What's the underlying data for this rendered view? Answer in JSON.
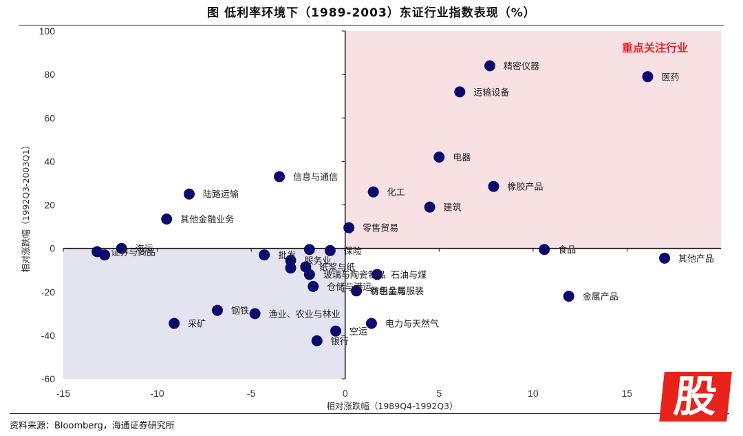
{
  "title": "图    低利率环境下（1989-2003）东证行业指数表现（%）",
  "source": "资料来源：Bloomberg，海通证券研究所",
  "watermark": "股",
  "chart_data": {
    "type": "scatter",
    "xlabel": "相对涨跌幅（1989Q4-1992Q3）",
    "ylabel": "相对涨跌幅（1992Q3-2003Q1）",
    "xlim": [
      -15,
      20
    ],
    "ylim": [
      -60,
      100
    ],
    "x_ticks": [
      -15,
      -10,
      -5,
      0,
      5,
      10,
      15
    ],
    "y_ticks": [
      -60,
      -40,
      -20,
      0,
      20,
      40,
      60,
      80,
      100
    ],
    "focus_label": "重点关注行业",
    "colors": {
      "marker": "#0d0a6e",
      "focus_region": "#f7e1e3",
      "negative_region": "#e4e4f1",
      "focus_text": "#e0262b"
    },
    "points": [
      {
        "label": "精密仪器",
        "x": 7.7,
        "y": 84
      },
      {
        "label": "医药",
        "x": 16.1,
        "y": 79
      },
      {
        "label": "运输设备",
        "x": 6.1,
        "y": 72
      },
      {
        "label": "电器",
        "x": 5.0,
        "y": 42
      },
      {
        "label": "信息与通信",
        "x": -3.5,
        "y": 33
      },
      {
        "label": "化工",
        "x": 1.5,
        "y": 26
      },
      {
        "label": "橡胶产品",
        "x": 7.9,
        "y": 28.5
      },
      {
        "label": "陆路运输",
        "x": -8.3,
        "y": 25
      },
      {
        "label": "建筑",
        "x": 4.5,
        "y": 19
      },
      {
        "label": "其他金融业务",
        "x": -9.5,
        "y": 13.5
      },
      {
        "label": "零售贸易",
        "x": 0.2,
        "y": 9.5
      },
      {
        "label": "食品",
        "x": 10.6,
        "y": -0.5
      },
      {
        "label": "其他产品",
        "x": 17.0,
        "y": -4.5
      },
      {
        "label": "金属产品",
        "x": 11.9,
        "y": -22
      },
      {
        "label": "证券与商品",
        "x": -13.2,
        "y": -1.5
      },
      {
        "label": "",
        "x": -12.8,
        "y": -3
      },
      {
        "label": "海运",
        "x": -11.9,
        "y": 0
      },
      {
        "label": "批发",
        "x": -4.3,
        "y": -3
      },
      {
        "label": "服务业",
        "x": -2.9,
        "y": -5.5
      },
      {
        "label": "",
        "x": -2.9,
        "y": -9
      },
      {
        "label": "",
        "x": -1.9,
        "y": -0.5
      },
      {
        "label": "保险",
        "x": -0.8,
        "y": -1
      },
      {
        "label": "纸浆与纸",
        "x": -2.1,
        "y": -8.5
      },
      {
        "label": "玻璃与陶瓷制品",
        "x": -1.9,
        "y": -12
      },
      {
        "label": "仓储与港运",
        "x": -1.7,
        "y": -17.5
      },
      {
        "label": "石油与煤",
        "x": 1.7,
        "y": -12
      },
      {
        "label": "有色金属",
        "x": 0.6,
        "y": -19.5
      },
      {
        "label": "纺织品与服装",
        "x": 0.6,
        "y": -19.5
      },
      {
        "label": "钢铁",
        "x": -6.8,
        "y": -28.5
      },
      {
        "label": "渔业、农业与林业",
        "x": -4.8,
        "y": -30
      },
      {
        "label": "采矿",
        "x": -9.1,
        "y": -34.5
      },
      {
        "label": "电力与天然气",
        "x": 1.4,
        "y": -34.5
      },
      {
        "label": "空运",
        "x": -0.5,
        "y": -38
      },
      {
        "label": "银行",
        "x": -1.5,
        "y": -42.5
      }
    ]
  }
}
